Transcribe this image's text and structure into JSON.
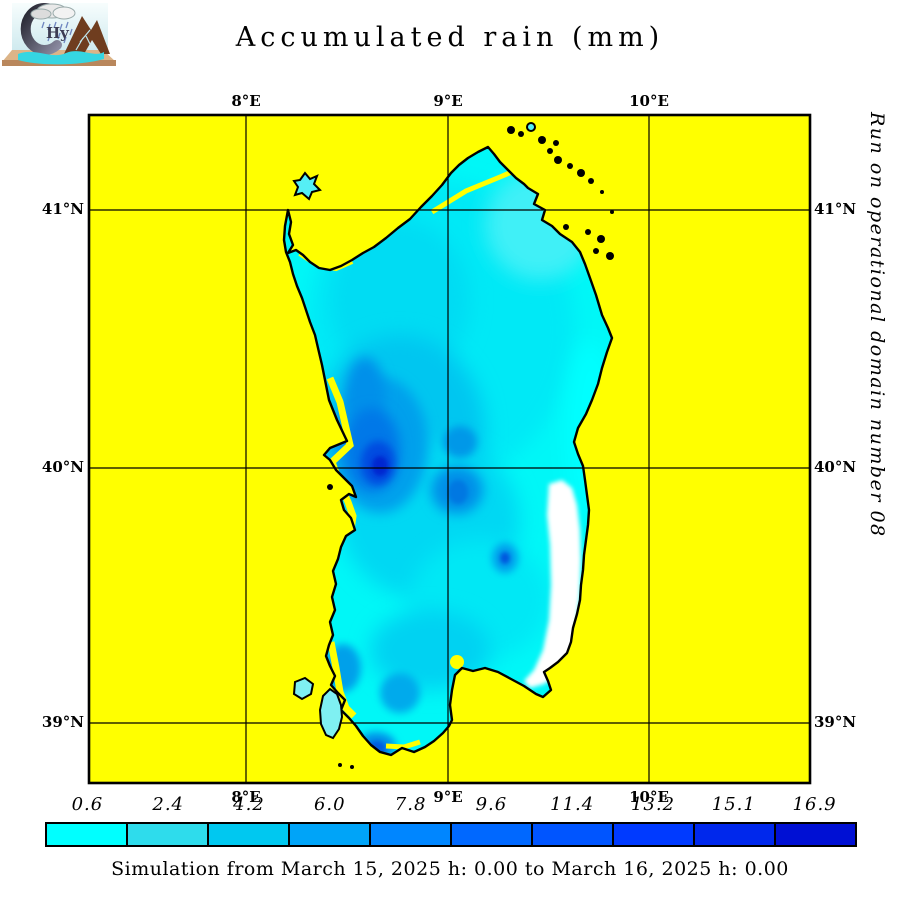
{
  "title": "Accumulated rain (mm)",
  "logo": {
    "name": "CHyM logo",
    "letters_hy": "Hy"
  },
  "side_note": "Run on operational domain number 08",
  "footer": "Simulation from March 15, 2025 h: 0.00 to March 16, 2025 h: 0.00",
  "map": {
    "background_color": "#FFFF00",
    "top_labels": [
      "8°E",
      "9°E",
      "10°E"
    ],
    "bottom_labels": [
      "8°E",
      "9°E",
      "10°E"
    ],
    "left_labels": [
      "41°N",
      "40°N",
      "39°N"
    ],
    "right_labels": [
      "41°N",
      "40°N",
      "39°N"
    ]
  },
  "colorbar": {
    "values": [
      "0.6",
      "2.4",
      "4.2",
      "6.0",
      "7.8",
      "9.6",
      "11.4",
      "13.2",
      "15.1",
      "16.9"
    ],
    "colors": [
      "#00FFFF",
      "#2EDCEC",
      "#00C8F0",
      "#00A4F8",
      "#0086FF",
      "#0068FF",
      "#0055FF",
      "#003AFF",
      "#0028EC",
      "#0010D4"
    ]
  },
  "chart_data": {
    "type": "heatmap",
    "title": "Accumulated rain (mm)",
    "region": "Sardinia",
    "x_ticks": [
      "8°E",
      "9°E",
      "10°E"
    ],
    "y_ticks": [
      "41°N",
      "40°N",
      "39°N"
    ],
    "levels_mm": [
      0.6,
      2.4,
      4.2,
      6.0,
      7.8,
      9.6,
      11.4,
      13.2,
      15.1,
      16.9
    ],
    "level_colors": [
      "#00FFFF",
      "#2EDCEC",
      "#00C8F0",
      "#00A4F8",
      "#0086FF",
      "#0068FF",
      "#0055FF",
      "#003AFF",
      "#0028EC",
      "#0010D4"
    ],
    "sea_no_data_color": "#FFFF00",
    "zero_rain_color": "#FFFFFF",
    "maxima_locations": [
      "west-central coast near 8.5E 40.1N",
      "south tip",
      "center near 9E 39.9N"
    ],
    "annotation_right": "Run on operational domain number 08",
    "caption": "Simulation from March 15, 2025 h: 0.00 to March 16, 2025 h: 0.00"
  }
}
